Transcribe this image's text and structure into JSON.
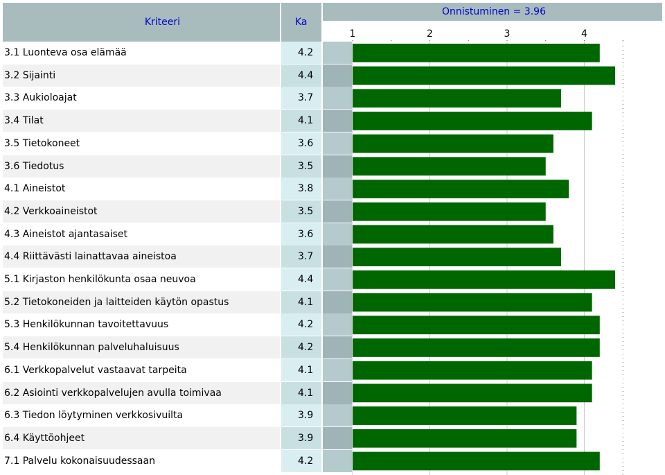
{
  "header": {
    "criteria_label": "Kriteeri",
    "ka_label": "Ka",
    "success_label": "Onnistuminen = 3.96"
  },
  "colors": {
    "bar": "#006600",
    "header_bg": "#a8bcbe",
    "header_text": "#0000cc"
  },
  "chart_data": {
    "type": "bar",
    "orientation": "horizontal",
    "title": "Onnistuminen = 3.96",
    "xlim": [
      1,
      4.5
    ],
    "x_ticks": [
      1,
      2,
      3,
      4
    ],
    "categories": [
      "3.1 Luonteva osa elämää",
      "3.2 Sijainti",
      "3.3 Aukioloajat",
      "3.4 Tilat",
      "3.5 Tietokoneet",
      "3.6 Tiedotus",
      "4.1 Aineistot",
      "4.2 Verkkoaineistot",
      "4.3 Aineistot ajantasaiset",
      "4.4 Riittävästi lainattavaa aineistoa",
      "5.1 Kirjaston henkilökunta osaa neuvoa",
      "5.2 Tietokoneiden ja laitteiden käytön opastus",
      "5.3 Henkilökunnan tavoitettavuus",
      "5.4 Henkilökunnan palveluhaluisuus",
      "6.1 Verkkopalvelut vastaavat tarpeita",
      "6.2 Asiointi verkkopalvelujen avulla toimivaa",
      "6.3 Tiedon löytyminen verkkosivuilta",
      "6.4 Käyttöohjeet",
      "7.1 Palvelu kokonaisuudessaan"
    ],
    "values": [
      4.2,
      4.4,
      3.7,
      4.1,
      3.6,
      3.5,
      3.8,
      3.5,
      3.6,
      3.7,
      4.4,
      4.1,
      4.2,
      4.2,
      4.1,
      4.1,
      3.9,
      3.9,
      4.2
    ],
    "labels": [
      "4.2",
      "4.4",
      "3.7",
      "4.1",
      "3.6",
      "3.5",
      "3.8",
      "3.5",
      "3.6",
      "3.7",
      "4.4",
      "4.1",
      "4.2",
      "4.2",
      "4.1",
      "4.1",
      "3.9",
      "3.9",
      "4.2"
    ]
  }
}
